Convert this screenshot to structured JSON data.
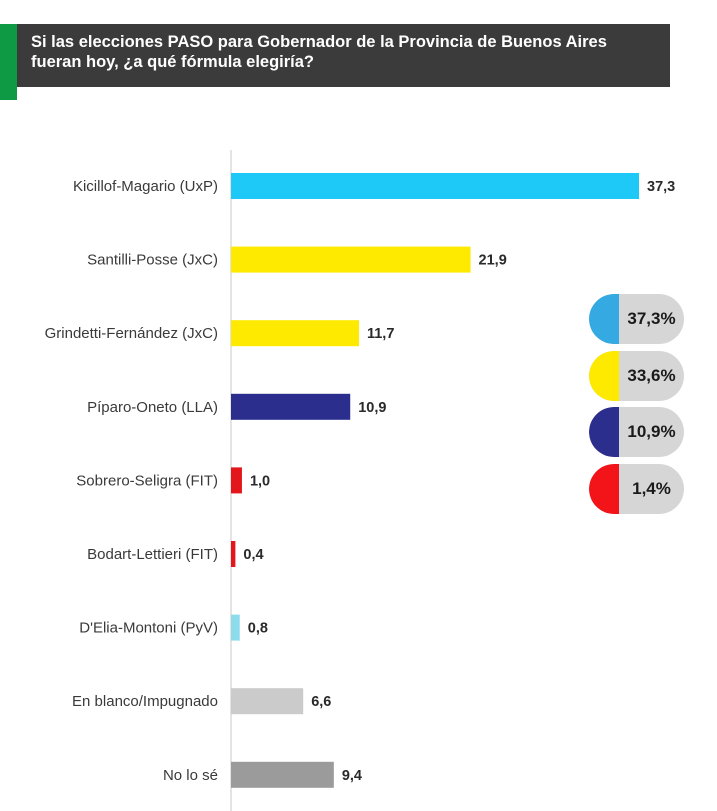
{
  "header": {
    "title": "Si las elecciones PASO para Gobernador de la Provincia de Buenos Aires\nfueran hoy, ¿a qué fórmula elegiría?"
  },
  "chart_data": {
    "type": "bar",
    "orientation": "horizontal",
    "categories": [
      "Kicillof-Magario (UxP)",
      "Santilli-Posse (JxC)",
      "Grindetti-Fernández (JxC)",
      "Píparo-Oneto (LLA)",
      "Sobrero-Seligra (FIT)",
      "Bodart-Lettieri (FIT)",
      "D'Elia-Montoni (PyV)",
      "En blanco/Impugnado",
      "No lo sé"
    ],
    "values": [
      37.3,
      21.9,
      11.7,
      10.9,
      1.0,
      0.4,
      0.8,
      6.6,
      9.4
    ],
    "value_labels": [
      "37,3",
      "21,9",
      "11,7",
      "10,9",
      "1,0",
      "0,4",
      "0,8",
      "6,6",
      "9,4"
    ],
    "colors": [
      "#1ec8f7",
      "#fdea00",
      "#fdea00",
      "#2c2e8e",
      "#e3161b",
      "#e3161b",
      "#8ddcec",
      "#cbcbcb",
      "#9b9b9b"
    ],
    "xlim": [
      0,
      37.3
    ],
    "grid": false
  },
  "summary": [
    {
      "value": "37,3%",
      "color": "#35a9e1"
    },
    {
      "value": "33,6%",
      "color": "#fdea00"
    },
    {
      "value": "10,9%",
      "color": "#2c2e8e"
    },
    {
      "value": "1,4%",
      "color": "#f3141a"
    }
  ]
}
